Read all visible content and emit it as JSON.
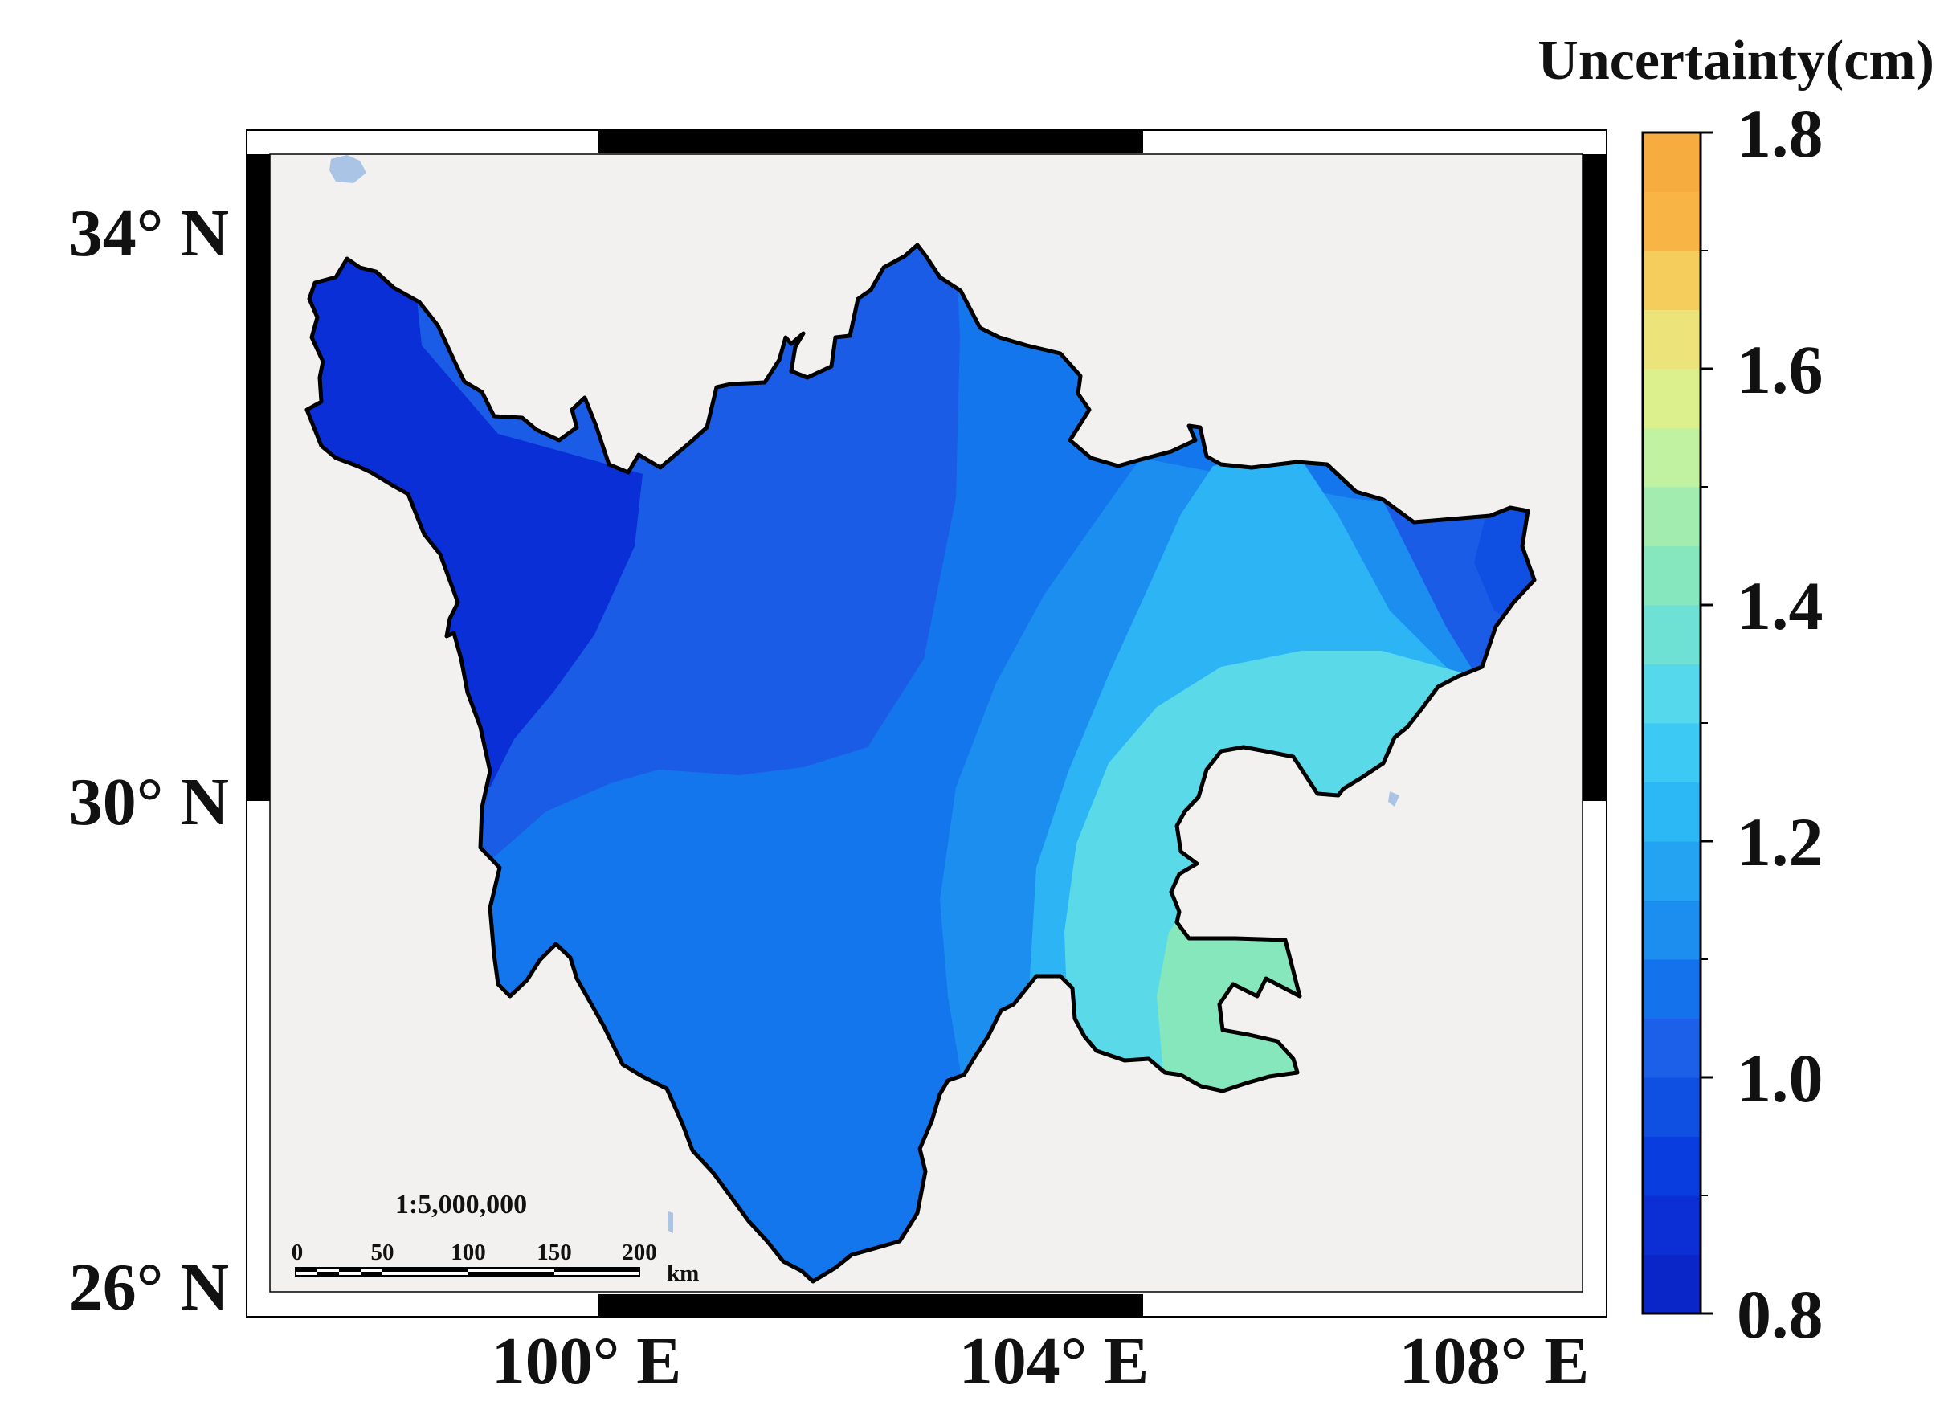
{
  "map": {
    "scale_ratio": "1:5,000,000",
    "scale_bar": {
      "ticks": [
        "0",
        "50",
        "100",
        "150",
        "200"
      ],
      "unit": "km"
    },
    "longitude_labels": [
      "100° E",
      "104° E",
      "108° E"
    ],
    "latitude_labels": [
      "34° N",
      "30° N",
      "26° N"
    ],
    "background_color": "#f2f1ef",
    "boundary_color": "#000000",
    "water_color": "#a9c4e4"
  },
  "legend": {
    "title": "Uncertainty(cm)",
    "min": 0.8,
    "max": 1.8,
    "tick_labels": [
      "1.8",
      "1.6",
      "1.4",
      "1.2",
      "1.0",
      "0.8"
    ],
    "color_steps": [
      "#0a25c8",
      "#0b2fd5",
      "#0a3ddf",
      "#0f4fe2",
      "#1c5fe8",
      "#1473ec",
      "#1c8ef0",
      "#25a3f3",
      "#2cb8f5",
      "#3cc9f3",
      "#55d8eb",
      "#6fe0d4",
      "#86e6be",
      "#a2ecb0",
      "#c0f2a2",
      "#dcf08e",
      "#ece37a",
      "#f5cd5c",
      "#f8b545",
      "#f7ac40"
    ]
  },
  "uncertainty_zones": [
    {
      "zone": "northwest",
      "color": "#0a2fd6"
    },
    {
      "zone": "central-north",
      "color": "#1b5ce6"
    },
    {
      "zone": "central-south",
      "color": "#1476ec"
    },
    {
      "zone": "east-band-1",
      "color": "#1c8ef0"
    },
    {
      "zone": "east-band-2",
      "color": "#2cb4f5"
    },
    {
      "zone": "east-band-3",
      "color": "#5ad9e9"
    },
    {
      "zone": "southeast",
      "color": "#86e6bc"
    },
    {
      "zone": "northeast-edge",
      "color": "#1b5ce6"
    }
  ]
}
